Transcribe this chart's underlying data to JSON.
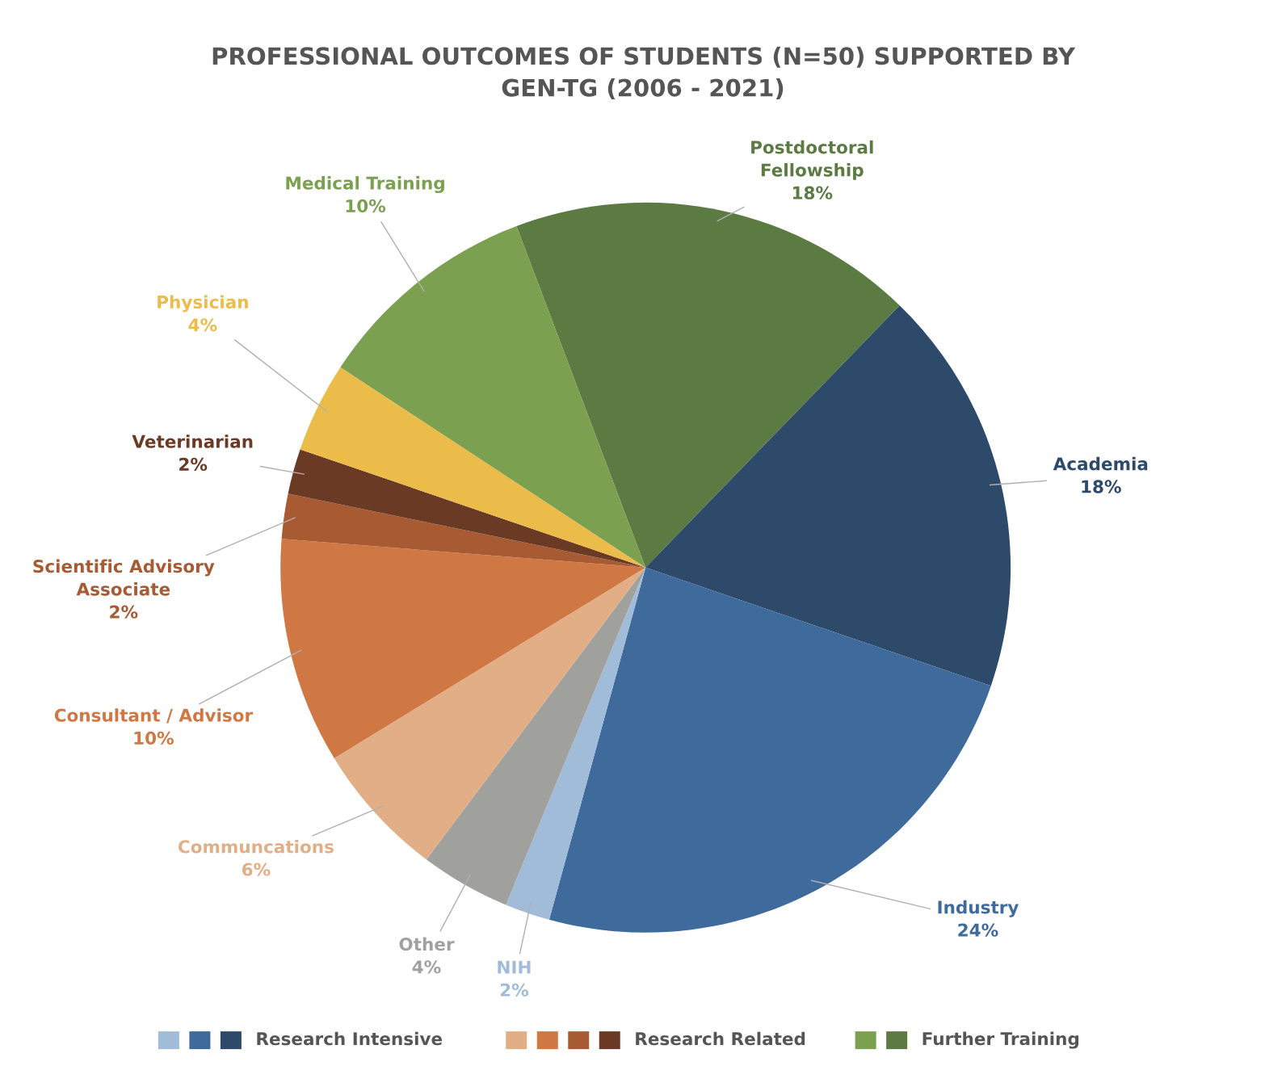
{
  "chart_data": {
    "type": "pie",
    "title": "PROFESSIONAL OUTCOMES OF STUDENTS (N=50) SUPPORTED BY\nGEN-TG (2006 - 2021)",
    "categories": [
      "Postdoctoral\nFellowship",
      "Academia",
      "Industry",
      "NIH",
      "Other",
      "Communcations",
      "Consultant / Advisor",
      "Scientific Advisory\nAssociate",
      "Veterinarian",
      "Physician",
      "Medical Training"
    ],
    "values": [
      18,
      18,
      24,
      2,
      4,
      6,
      10,
      2,
      2,
      4,
      10
    ],
    "value_labels": [
      "18%",
      "18%",
      "24%",
      "2%",
      "4%",
      "6%",
      "10%",
      "2%",
      "2%",
      "4%",
      "10%"
    ],
    "colors": [
      "#5b7b43",
      "#2d4a6a",
      "#3f6a9c",
      "#a1bcd8",
      "#a0a09c",
      "#e2ae86",
      "#d07844",
      "#a85a33",
      "#6a3a25",
      "#ecbc4a",
      "#7aa050"
    ],
    "annotations": [
      "Research Intensive",
      "Research Related",
      "Further Training"
    ]
  }
}
